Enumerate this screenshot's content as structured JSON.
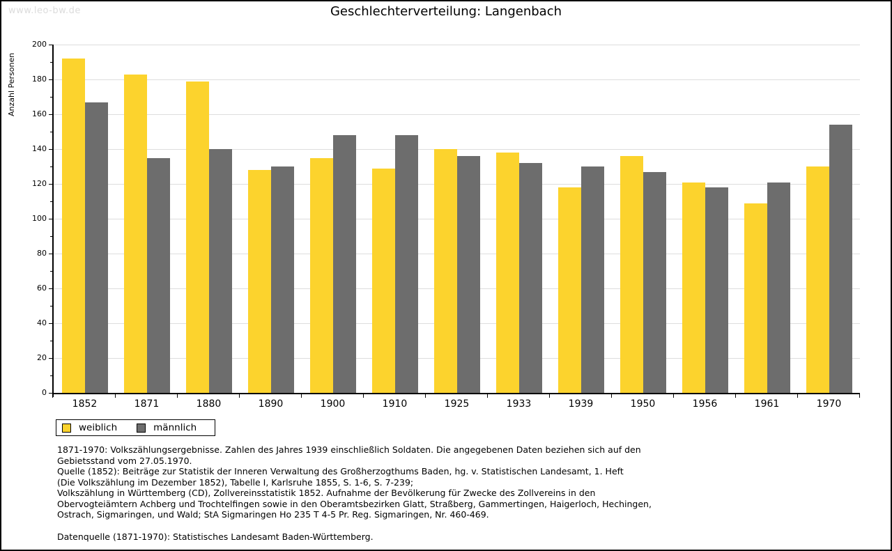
{
  "page": {
    "watermark": "www.leo-bw.de",
    "title": "Geschlechterverteilung: Langenbach"
  },
  "chart_data": {
    "type": "bar",
    "title": "Geschlechterverteilung: Langenbach",
    "ylabel": "Anzahl Personen",
    "xlabel": "",
    "categories": [
      "1852",
      "1871",
      "1880",
      "1890",
      "1900",
      "1910",
      "1925",
      "1933",
      "1939",
      "1950",
      "1956",
      "1961",
      "1970"
    ],
    "series": [
      {
        "name": "weiblich",
        "color": "#FCD32D",
        "values": [
          192,
          183,
          179,
          128,
          135,
          129,
          140,
          138,
          118,
          136,
          121,
          109,
          130
        ]
      },
      {
        "name": "männlich",
        "color": "#6D6D6D",
        "values": [
          167,
          135,
          140,
          130,
          148,
          148,
          136,
          132,
          130,
          127,
          118,
          121,
          154
        ]
      }
    ],
    "ylim": [
      0,
      200
    ],
    "ytick_major_step": 20,
    "ytick_minor_step": 10,
    "grid": "horizontal-major",
    "gridline_color": "#dddddd",
    "legend_position": "bottom-left"
  },
  "footer": {
    "lines": [
      "1871-1970: Volkszählungsergebnisse. Zahlen des Jahres 1939 einschließlich Soldaten. Die angegebenen Daten beziehen sich auf den",
      "Gebietsstand vom 27.05.1970.",
      "Quelle (1852): Beiträge zur Statistik der Inneren Verwaltung des Großherzogthums Baden, hg. v. Statistischen Landesamt, 1. Heft",
      "(Die Volkszählung im Dezember 1852), Tabelle I, Karlsruhe 1855, S. 1-6, S. 7-239;",
      "Volkszählung in Württemberg (CD), Zollvereinsstatistik 1852. Aufnahme der Bevölkerung für Zwecke des Zollvereins in den",
      "Obervogteiämtern Achberg und Trochtelfingen sowie in den Oberamtsbezirken Glatt, Straßberg, Gammertingen, Haigerloch, Hechingen,",
      "Ostrach, Sigmaringen, und Wald; StA Sigmaringen Ho 235 T 4-5 Pr. Reg. Sigmaringen, Nr. 460-469."
    ],
    "datasource": "Datenquelle (1871-1970): Statistisches Landesamt Baden-Württemberg."
  }
}
